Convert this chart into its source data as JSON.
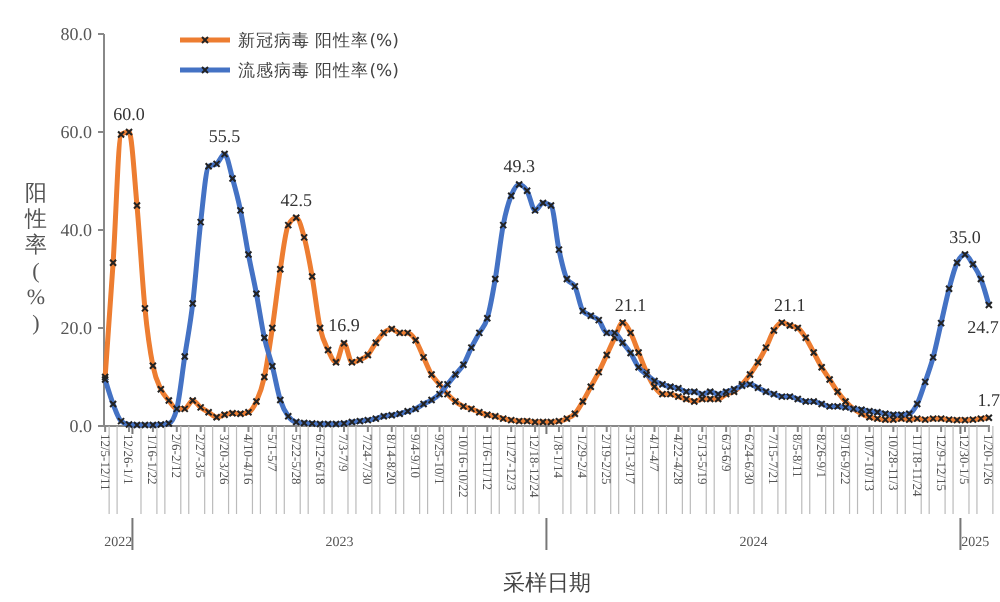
{
  "chart_data": {
    "type": "line",
    "xlabel": "采样日期",
    "ylabel": "阳性率(%)",
    "x": [
      "2022-12-05",
      "2022-12-12",
      "2022-12-19",
      "2022-12-26",
      "2023-01-02",
      "2023-01-09",
      "2023-01-16",
      "2023-01-23",
      "2023-01-30",
      "2023-02-06",
      "2023-02-13",
      "2023-02-20",
      "2023-02-27",
      "2023-03-06",
      "2023-03-13",
      "2023-03-20",
      "2023-03-27",
      "2023-04-03",
      "2023-04-10",
      "2023-04-17",
      "2023-04-24",
      "2023-05-01",
      "2023-05-08",
      "2023-05-15",
      "2023-05-22",
      "2023-05-29",
      "2023-06-05",
      "2023-06-12",
      "2023-06-19",
      "2023-06-26",
      "2023-07-03",
      "2023-07-10",
      "2023-07-17",
      "2023-07-24",
      "2023-07-31",
      "2023-08-07",
      "2023-08-14",
      "2023-08-21",
      "2023-08-28",
      "2023-09-04",
      "2023-09-11",
      "2023-09-18",
      "2023-09-25",
      "2023-10-02",
      "2023-10-09",
      "2023-10-16",
      "2023-10-23",
      "2023-10-30",
      "2023-11-06",
      "2023-11-13",
      "2023-11-20",
      "2023-11-27",
      "2023-12-04",
      "2023-12-11",
      "2023-12-18",
      "2023-12-25",
      "2024-01-01",
      "2024-01-08",
      "2024-01-15",
      "2024-01-22",
      "2024-01-29",
      "2024-02-05",
      "2024-02-12",
      "2024-02-19",
      "2024-02-26",
      "2024-03-04",
      "2024-03-11",
      "2024-03-18",
      "2024-03-25",
      "2024-04-01",
      "2024-04-08",
      "2024-04-15",
      "2024-04-22",
      "2024-04-29",
      "2024-05-06",
      "2024-05-13",
      "2024-05-20",
      "2024-05-27",
      "2024-06-03",
      "2024-06-10",
      "2024-06-17",
      "2024-06-24",
      "2024-07-01",
      "2024-07-08",
      "2024-07-15",
      "2024-07-22",
      "2024-07-29",
      "2024-08-05",
      "2024-08-12",
      "2024-08-19",
      "2024-08-26",
      "2024-09-02",
      "2024-09-09",
      "2024-09-16",
      "2024-09-23",
      "2024-09-30",
      "2024-10-07",
      "2024-10-14",
      "2024-10-21",
      "2024-10-28",
      "2024-11-04",
      "2024-11-11",
      "2024-11-18",
      "2024-11-25",
      "2024-12-02",
      "2024-12-09",
      "2024-12-16",
      "2024-12-23",
      "2024-12-30",
      "2025-01-06",
      "2025-01-13",
      "2025-01-20"
    ],
    "series": [
      {
        "name": "新冠病毒 阳性率(%)",
        "color": "#ed7d31",
        "values": [
          10,
          33.3,
          59.5,
          60,
          45,
          24,
          12.3,
          7.5,
          5.2,
          3.5,
          3.5,
          5.2,
          3.8,
          2.8,
          1.8,
          2.3,
          2.6,
          2.5,
          2.8,
          5,
          10,
          20,
          32,
          41,
          42.5,
          38.5,
          30.5,
          20,
          15.5,
          13,
          16.9,
          13,
          13.5,
          14.5,
          17,
          19,
          19.8,
          19,
          19,
          17.5,
          14,
          10.5,
          8.5,
          6.5,
          5,
          4,
          3.5,
          2.8,
          2.3,
          2,
          1.5,
          1.2,
          1,
          1,
          0.8,
          0.8,
          0.8,
          1,
          1.5,
          2.5,
          5,
          8,
          11,
          14.5,
          18,
          21.1,
          19,
          15,
          11,
          8,
          6.5,
          6.5,
          6,
          5.5,
          5,
          5.5,
          5.5,
          5.5,
          6.5,
          7,
          8.5,
          10.5,
          13,
          16,
          19.5,
          21.1,
          20.5,
          20,
          18,
          15,
          12,
          9.5,
          7,
          5,
          3.5,
          2.5,
          1.8,
          1.5,
          1.3,
          1.3,
          1.5,
          1.3,
          1.5,
          1.3,
          1.5,
          1.5,
          1.3,
          1.2,
          1.2,
          1.3,
          1.5,
          1.7
        ]
      },
      {
        "name": "流感病毒 阳性率(%)",
        "color": "#4472c4",
        "values": [
          9.5,
          4.5,
          1,
          0.3,
          0.2,
          0.2,
          0.2,
          0.3,
          0.5,
          3.5,
          14.2,
          25,
          41.6,
          53,
          53.5,
          55.5,
          50.5,
          44,
          35,
          27,
          18,
          12.2,
          5.3,
          2,
          0.8,
          0.6,
          0.5,
          0.4,
          0.4,
          0.4,
          0.5,
          0.8,
          1,
          1.2,
          1.5,
          2,
          2.2,
          2.5,
          3,
          3.5,
          4.5,
          5.3,
          6.5,
          8.5,
          10.5,
          12.5,
          16,
          19,
          22,
          30,
          41,
          47,
          49.3,
          48,
          44,
          45.5,
          45,
          36,
          30,
          28.5,
          23.5,
          22.5,
          21.6,
          19,
          19,
          17,
          14.9,
          12,
          10.5,
          9.2,
          8.5,
          8,
          7.7,
          7,
          7,
          6.5,
          7,
          6.5,
          7,
          7.5,
          8.2,
          8.5,
          7.8,
          7,
          6.5,
          6,
          6,
          5.5,
          5,
          5,
          4.5,
          4,
          4,
          3.8,
          3.5,
          3.3,
          3,
          2.8,
          2.5,
          2.3,
          2.3,
          2.5,
          4.5,
          9,
          14,
          21,
          28,
          33.3,
          35,
          33,
          30,
          24.7
        ]
      }
    ],
    "xlim": [
      "2022-12-04",
      "2025-01-21"
    ],
    "xticks": [
      {
        "value": "2022-12-05",
        "label": "12/5-12/11"
      },
      {
        "value": "2022-12-26",
        "label": "12/26-1/1"
      },
      {
        "value": "2023-01-16",
        "label": "1/16-1/22"
      },
      {
        "value": "2023-02-06",
        "label": "2/6-2/12"
      },
      {
        "value": "2023-02-27",
        "label": "2/27-3/5"
      },
      {
        "value": "2023-03-20",
        "label": "3/20-3/26"
      },
      {
        "value": "2023-04-10",
        "label": "4/10-4/16"
      },
      {
        "value": "2023-05-01",
        "label": "5/1-5/7"
      },
      {
        "value": "2023-05-22",
        "label": "5/22-5/28"
      },
      {
        "value": "2023-06-12",
        "label": "6/12-6/18"
      },
      {
        "value": "2023-07-03",
        "label": "7/3-7/9"
      },
      {
        "value": "2023-07-24",
        "label": "7/24-7/30"
      },
      {
        "value": "2023-08-14",
        "label": "8/14-8/20"
      },
      {
        "value": "2023-09-04",
        "label": "9/4-9/10"
      },
      {
        "value": "2023-09-25",
        "label": "9/25-10/1"
      },
      {
        "value": "2023-10-16",
        "label": "10/16-10/22"
      },
      {
        "value": "2023-11-06",
        "label": "11/6-11/12"
      },
      {
        "value": "2023-11-27",
        "label": "11/27-12/3"
      },
      {
        "value": "2023-12-18",
        "label": "12/18-12/24"
      },
      {
        "value": "2024-01-08",
        "label": "1/8-1/14"
      },
      {
        "value": "2024-01-29",
        "label": "1/29-2/4"
      },
      {
        "value": "2024-02-19",
        "label": "2/19-2/25"
      },
      {
        "value": "2024-03-11",
        "label": "3/11-3/17"
      },
      {
        "value": "2024-04-01",
        "label": "4/1-4/7"
      },
      {
        "value": "2024-04-22",
        "label": "4/22-4/28"
      },
      {
        "value": "2024-05-13",
        "label": "5/13-5/19"
      },
      {
        "value": "2024-06-03",
        "label": "6/3-6/9"
      },
      {
        "value": "2024-06-24",
        "label": "6/24-6/30"
      },
      {
        "value": "2024-07-15",
        "label": "7/15-7/21"
      },
      {
        "value": "2024-08-05",
        "label": "8/5-8/11"
      },
      {
        "value": "2024-08-26",
        "label": "8/26-9/1"
      },
      {
        "value": "2024-09-16",
        "label": "9/16-9/22"
      },
      {
        "value": "2024-10-07",
        "label": "10/7-10/13"
      },
      {
        "value": "2024-10-28",
        "label": "10/28-11/3"
      },
      {
        "value": "2024-11-18",
        "label": "11/18-11/24"
      },
      {
        "value": "2024-12-09",
        "label": "12/9-12/15"
      },
      {
        "value": "2024-12-30",
        "label": "12/30-1/5"
      },
      {
        "value": "2025-01-20",
        "label": "1/20-1/26"
      },
      {
        "value": "2022-12-29",
        "label": null
      },
      {
        "value": "2023-12-28",
        "label": null
      },
      {
        "value": "2024-12-26",
        "label": null
      }
    ],
    "ylim": [
      0,
      80
    ],
    "yticks": [
      {
        "value": 0,
        "label": "0.0"
      },
      {
        "value": 20,
        "label": "20.0"
      },
      {
        "value": 40,
        "label": "40.0"
      },
      {
        "value": 60,
        "label": "60.0"
      },
      {
        "value": 80,
        "label": "80.0"
      }
    ],
    "annotations": [
      {
        "text": "60.0",
        "x": "2022-12-26",
        "y": 60
      },
      {
        "text": "55.5",
        "x": "2023-03-20",
        "y": 55.5
      },
      {
        "text": "42.5",
        "x": "2023-05-22",
        "y": 42.5
      },
      {
        "text": "16.9",
        "x": "2023-07-03",
        "y": 16.9
      },
      {
        "text": "49.3",
        "x": "2023-12-04",
        "y": 49.3
      },
      {
        "text": "21.1",
        "x": "2024-03-11",
        "y": 21.1
      },
      {
        "text": "21.1",
        "x": "2024-07-29",
        "y": 21.1
      },
      {
        "text": "35.0",
        "x": "2024-12-30",
        "y": 35
      },
      {
        "text": "24.7",
        "x": "2025-01-20",
        "y": 24.7
      },
      {
        "text": "1.7",
        "x": "2025-01-20",
        "y": 1.7
      },
      "2022",
      "2023",
      "2024",
      "2025"
    ],
    "legend": "top left",
    "marker": "cross",
    "line_style": "solid"
  }
}
